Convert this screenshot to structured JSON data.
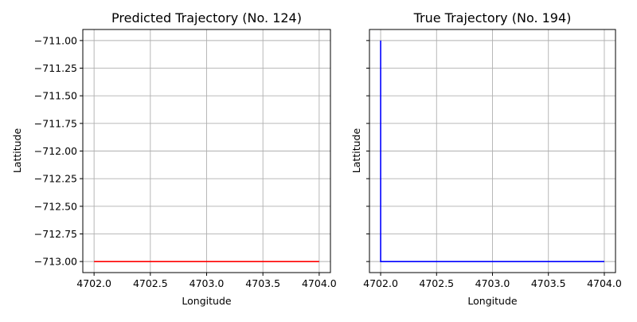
{
  "chart_data": [
    {
      "type": "line",
      "title": "Predicted Trajectory (No. 124)",
      "xlabel": "Longitude",
      "ylabel": "Lattitude",
      "xlim": [
        4701.9,
        4704.1
      ],
      "ylim": [
        -713.1,
        -710.9
      ],
      "xticks": [
        4702.0,
        4702.5,
        4703.0,
        4703.5,
        4704.0
      ],
      "xtick_labels": [
        "4702.0",
        "4702.5",
        "4703.0",
        "4703.5",
        "4704.0"
      ],
      "yticks": [
        -711.0,
        -711.25,
        -711.5,
        -711.75,
        -712.0,
        -712.25,
        -712.5,
        -712.75,
        -713.0
      ],
      "ytick_labels": [
        "−711.00",
        "−711.25",
        "−711.50",
        "−711.75",
        "−712.00",
        "−712.25",
        "−712.50",
        "−712.75",
        "−713.00"
      ],
      "grid": true,
      "series": [
        {
          "color": "#ff0000",
          "x": [
            4702.0,
            4704.0
          ],
          "y": [
            -713.0,
            -713.0
          ]
        }
      ]
    },
    {
      "type": "line",
      "title": "True Trajectory (No. 194)",
      "xlabel": "Longitude",
      "ylabel": "Lattitude",
      "xlim": [
        4701.9,
        4704.1
      ],
      "ylim": [
        -713.1,
        -710.9
      ],
      "xticks": [
        4702.0,
        4702.5,
        4703.0,
        4703.5,
        4704.0
      ],
      "xtick_labels": [
        "4702.0",
        "4702.5",
        "4703.0",
        "4703.5",
        "4704.0"
      ],
      "yticks": [
        -711.0,
        -711.25,
        -711.5,
        -711.75,
        -712.0,
        -712.25,
        -712.5,
        -712.75,
        -713.0
      ],
      "ytick_labels": [],
      "shared_y": true,
      "grid": true,
      "series": [
        {
          "color": "#0000ff",
          "x": [
            4702.0,
            4702.0,
            4704.0
          ],
          "y": [
            -711.0,
            -713.0,
            -713.0
          ]
        }
      ]
    }
  ]
}
